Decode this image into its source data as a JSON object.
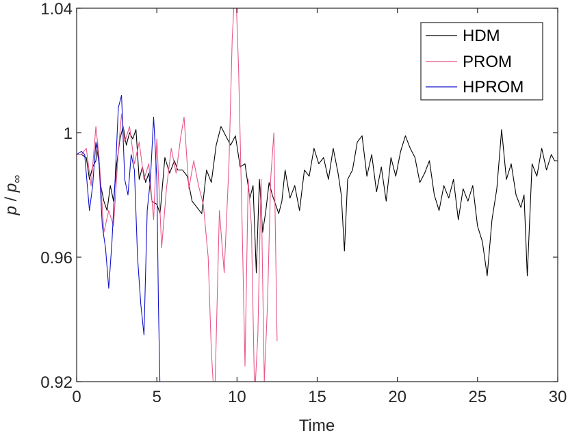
{
  "chart_data": {
    "type": "line",
    "title": "",
    "xlabel": "Time",
    "ylabel_main": "p",
    "ylabel_sep": " / ",
    "ylabel_sub_base": "p",
    "ylabel_sub": "∞",
    "xlim": [
      0,
      30
    ],
    "ylim": [
      0.92,
      1.04
    ],
    "xticks": [
      0,
      5,
      10,
      15,
      20,
      25,
      30
    ],
    "xtick_labels": [
      "0",
      "5",
      "10",
      "15",
      "20",
      "25",
      "30"
    ],
    "yticks": [
      0.92,
      0.96,
      1.0,
      1.04
    ],
    "ytick_labels": [
      "0.92",
      "0.96",
      "1",
      "1.04"
    ],
    "grid": false,
    "legend": {
      "placement": "top-right"
    },
    "series": [
      {
        "name": "HDM",
        "color": "#000000",
        "x": [
          0,
          0.3,
          0.6,
          0.8,
          1.0,
          1.2,
          1.3,
          1.5,
          1.7,
          1.9,
          2.1,
          2.3,
          2.5,
          2.7,
          2.9,
          3.1,
          3.3,
          3.5,
          3.7,
          3.9,
          4.1,
          4.3,
          4.5,
          4.7,
          5.0,
          5.2,
          5.5,
          5.8,
          6.1,
          6.3,
          6.6,
          6.9,
          7.2,
          7.5,
          7.8,
          8.1,
          8.4,
          8.7,
          9.0,
          9.3,
          9.6,
          9.9,
          10.2,
          10.5,
          10.8,
          11.0,
          11.2,
          11.4,
          11.6,
          11.8,
          12.0,
          12.2,
          12.4,
          12.6,
          12.8,
          13.0,
          13.3,
          13.6,
          13.9,
          14.2,
          14.5,
          14.8,
          15.1,
          15.4,
          15.7,
          16.0,
          16.3,
          16.5,
          16.7,
          16.9,
          17.2,
          17.5,
          17.8,
          18.1,
          18.4,
          18.7,
          19.0,
          19.3,
          19.6,
          19.9,
          20.2,
          20.5,
          20.8,
          21.1,
          21.4,
          21.7,
          22.0,
          22.3,
          22.6,
          22.9,
          23.2,
          23.5,
          23.8,
          24.1,
          24.4,
          24.7,
          25.0,
          25.3,
          25.6,
          25.9,
          26.2,
          26.5,
          26.8,
          27.1,
          27.4,
          27.7,
          27.9,
          28.1,
          28.4,
          28.7,
          29.0,
          29.3,
          29.6,
          29.8,
          30.0
        ],
        "values": [
          0.993,
          0.993,
          0.992,
          0.985,
          0.989,
          0.991,
          0.997,
          0.983,
          0.978,
          0.975,
          0.983,
          0.978,
          0.99,
          0.998,
          1.002,
          0.996,
          1.0,
          0.998,
          1.001,
          0.985,
          0.989,
          0.984,
          0.987,
          0.978,
          0.977,
          0.974,
          0.992,
          0.987,
          0.991,
          0.988,
          0.988,
          0.986,
          0.978,
          0.976,
          0.974,
          0.988,
          0.984,
          0.996,
          1.002,
          0.999,
          0.996,
          0.999,
          0.989,
          0.99,
          0.979,
          0.983,
          0.955,
          0.985,
          0.968,
          0.975,
          0.984,
          0.98,
          0.977,
          0.974,
          0.978,
          0.988,
          0.979,
          0.983,
          0.975,
          0.988,
          0.986,
          0.995,
          0.99,
          0.992,
          0.985,
          0.995,
          0.987,
          0.98,
          0.962,
          0.985,
          0.988,
          0.997,
          0.999,
          0.986,
          0.993,
          0.981,
          0.989,
          0.978,
          0.992,
          0.986,
          0.994,
          0.999,
          0.995,
          0.992,
          0.984,
          0.987,
          0.991,
          0.98,
          0.975,
          0.983,
          0.979,
          0.985,
          0.972,
          0.982,
          0.978,
          0.983,
          0.97,
          0.965,
          0.954,
          0.972,
          0.982,
          1.001,
          0.985,
          0.99,
          0.98,
          0.976,
          0.98,
          0.954,
          0.99,
          0.986,
          0.995,
          0.988,
          0.993,
          0.991,
          0.991
        ]
      },
      {
        "name": "PROM",
        "color": "#e8558a",
        "x": [
          0,
          0.3,
          0.6,
          0.9,
          1.2,
          1.4,
          1.7,
          2.0,
          2.3,
          2.6,
          2.8,
          3.0,
          3.3,
          3.6,
          3.9,
          4.2,
          4.5,
          4.8,
          5.0,
          5.3,
          5.6,
          5.9,
          6.2,
          6.5,
          6.7,
          7.0,
          7.3,
          7.6,
          7.9,
          8.2,
          8.4,
          8.6,
          8.9,
          9.2,
          9.5,
          9.7,
          9.9,
          10.1,
          10.3,
          10.5,
          10.7,
          10.9,
          11.1,
          11.3,
          11.5,
          11.7,
          11.9,
          12.1,
          12.3,
          12.5
        ],
        "values": [
          0.993,
          0.993,
          0.995,
          0.983,
          1.002,
          0.992,
          0.968,
          0.975,
          0.97,
          0.994,
          1.006,
          0.997,
          1.002,
          0.99,
          0.997,
          0.985,
          0.99,
          0.972,
          0.998,
          0.963,
          0.982,
          0.995,
          0.987,
          0.999,
          1.005,
          0.982,
          0.991,
          0.983,
          0.977,
          0.96,
          0.93,
          0.912,
          0.975,
          0.955,
          0.99,
          1.03,
          1.05,
          1.02,
          0.975,
          0.925,
          0.985,
          0.97,
          0.915,
          0.935,
          0.985,
          0.92,
          0.945,
          0.985,
          1.0,
          0.933
        ]
      },
      {
        "name": "HPROM",
        "color": "#1010c8",
        "x": [
          0,
          0.3,
          0.5,
          0.8,
          1.0,
          1.2,
          1.4,
          1.6,
          1.8,
          2.0,
          2.2,
          2.4,
          2.6,
          2.8,
          3.0,
          3.2,
          3.4,
          3.6,
          3.8,
          4.0,
          4.2,
          4.4,
          4.6,
          4.8,
          5.0,
          5.1,
          5.2
        ],
        "values": [
          0.993,
          0.994,
          0.993,
          0.975,
          0.983,
          0.997,
          0.99,
          0.97,
          0.963,
          0.95,
          0.965,
          0.985,
          1.008,
          1.012,
          0.985,
          0.98,
          0.993,
          0.988,
          0.96,
          0.945,
          0.935,
          0.975,
          0.985,
          1.005,
          0.985,
          0.945,
          0.917
        ]
      }
    ]
  }
}
